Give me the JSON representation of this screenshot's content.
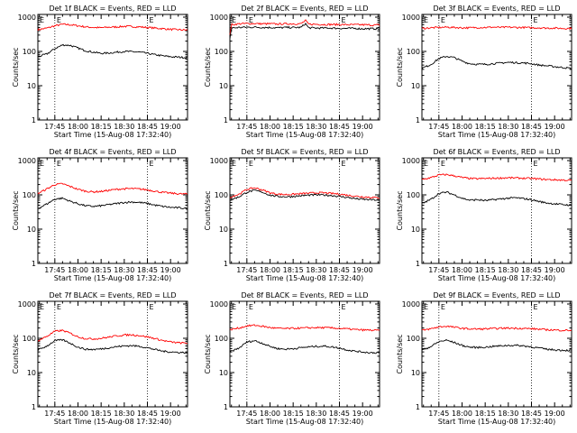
{
  "figure": {
    "colors": {
      "events": "#000000",
      "lld": "#ff0000",
      "axes": "#000000",
      "background": "#ffffff"
    },
    "y_ticks": [
      "1",
      "10",
      "100",
      "1000"
    ],
    "y_tick_values": [
      1,
      10,
      100,
      1000
    ],
    "x_ticks": [
      "17:45",
      "18:00",
      "18:15",
      "18:30",
      "18:45",
      "19:00"
    ],
    "x_tick_minutes": [
      0,
      15,
      30,
      45,
      60,
      75
    ],
    "corner_marker": "E",
    "xlabel": "Start Time (15-Aug-08 17:32:40)",
    "ylabel": "Counts/sec"
  },
  "chart_data": [
    {
      "type": "line",
      "title": "Det 1f BLACK = Events, RED = LLD",
      "xlabel": "Start Time (15-Aug-08 17:32:40)",
      "ylabel": "Counts/sec",
      "yscale": "log",
      "ylim": [
        1,
        1200
      ],
      "x_unit": "minutes after 17:45",
      "xlim": [
        -11,
        86
      ],
      "vlines": [
        0,
        60
      ],
      "grid": false,
      "series": [
        {
          "color": "red",
          "x": [
            -11,
            -5,
            0,
            5,
            10,
            15,
            20,
            25,
            30,
            35,
            40,
            45,
            50,
            55,
            60,
            65,
            70,
            75,
            80,
            86
          ],
          "values": [
            430,
            480,
            560,
            620,
            600,
            560,
            520,
            500,
            490,
            510,
            520,
            540,
            530,
            520,
            500,
            480,
            460,
            440,
            430,
            420
          ]
        },
        {
          "color": "black",
          "x": [
            -11,
            -5,
            0,
            5,
            10,
            15,
            20,
            25,
            30,
            35,
            40,
            45,
            50,
            55,
            60,
            65,
            70,
            75,
            80,
            86
          ],
          "values": [
            70,
            85,
            120,
            155,
            150,
            125,
            105,
            95,
            88,
            90,
            95,
            100,
            98,
            95,
            88,
            80,
            74,
            70,
            68,
            66
          ]
        }
      ]
    },
    {
      "type": "line",
      "title": "Det 2f BLACK = Events, RED = LLD",
      "xlabel": "Start Time (15-Aug-08 17:32:40)",
      "ylabel": "Counts/sec",
      "yscale": "log",
      "ylim": [
        1,
        1200
      ],
      "x_unit": "minutes after 17:45",
      "xlim": [
        -11,
        86
      ],
      "vlines": [
        0,
        60
      ],
      "grid": false,
      "series": [
        {
          "color": "red",
          "x": [
            -11,
            -10,
            -5,
            0,
            5,
            10,
            15,
            20,
            25,
            30,
            35,
            38,
            40,
            45,
            50,
            55,
            60,
            65,
            70,
            75,
            80,
            86
          ],
          "values": [
            320,
            600,
            640,
            650,
            650,
            640,
            640,
            630,
            640,
            640,
            640,
            800,
            620,
            620,
            610,
            610,
            610,
            600,
            600,
            600,
            590,
            590
          ]
        },
        {
          "color": "black",
          "x": [
            -11,
            -10,
            -5,
            0,
            5,
            10,
            15,
            20,
            25,
            30,
            35,
            38,
            40,
            45,
            50,
            55,
            60,
            65,
            70,
            75,
            80,
            86
          ],
          "values": [
            230,
            480,
            500,
            510,
            510,
            500,
            500,
            490,
            500,
            500,
            500,
            650,
            490,
            480,
            480,
            480,
            470,
            470,
            470,
            460,
            460,
            460
          ]
        }
      ]
    },
    {
      "type": "line",
      "title": "Det 3f BLACK = Events, RED = LLD",
      "xlabel": "Start Time (15-Aug-08 17:32:40)",
      "ylabel": "Counts/sec",
      "yscale": "log",
      "ylim": [
        1,
        1200
      ],
      "x_unit": "minutes after 17:45",
      "xlim": [
        -11,
        86
      ],
      "vlines": [
        0,
        60
      ],
      "grid": false,
      "series": [
        {
          "color": "red",
          "x": [
            -11,
            -5,
            0,
            5,
            10,
            15,
            20,
            25,
            30,
            35,
            40,
            45,
            50,
            55,
            60,
            65,
            70,
            75,
            80,
            86
          ],
          "values": [
            470,
            490,
            500,
            510,
            500,
            490,
            490,
            500,
            500,
            510,
            500,
            510,
            500,
            500,
            490,
            490,
            480,
            480,
            470,
            470
          ]
        },
        {
          "color": "black",
          "x": [
            -11,
            -5,
            0,
            5,
            10,
            15,
            20,
            25,
            30,
            35,
            40,
            45,
            50,
            55,
            60,
            65,
            70,
            75,
            80,
            86
          ],
          "values": [
            32,
            42,
            62,
            72,
            66,
            52,
            44,
            42,
            42,
            44,
            46,
            48,
            47,
            46,
            44,
            40,
            38,
            36,
            34,
            32
          ]
        }
      ]
    },
    {
      "type": "line",
      "title": "Det 4f BLACK = Events, RED = LLD",
      "xlabel": "Start Time (15-Aug-08 17:32:40)",
      "ylabel": "Counts/sec",
      "yscale": "log",
      "ylim": [
        1,
        1200
      ],
      "x_unit": "minutes after 17:45",
      "xlim": [
        -11,
        86
      ],
      "vlines": [
        0,
        60
      ],
      "grid": false,
      "series": [
        {
          "color": "red",
          "x": [
            -11,
            -5,
            0,
            5,
            10,
            15,
            20,
            25,
            30,
            35,
            40,
            45,
            50,
            55,
            60,
            65,
            70,
            75,
            80,
            86
          ],
          "values": [
            110,
            150,
            200,
            210,
            175,
            145,
            128,
            122,
            126,
            135,
            145,
            150,
            152,
            148,
            140,
            128,
            118,
            112,
            108,
            105
          ]
        },
        {
          "color": "black",
          "x": [
            -11,
            -5,
            0,
            5,
            10,
            15,
            20,
            25,
            30,
            35,
            40,
            45,
            50,
            55,
            60,
            65,
            70,
            75,
            80,
            86
          ],
          "values": [
            40,
            55,
            75,
            80,
            65,
            55,
            48,
            46,
            48,
            52,
            56,
            60,
            62,
            60,
            56,
            50,
            46,
            43,
            42,
            40
          ]
        }
      ]
    },
    {
      "type": "line",
      "title": "Det 5f BLACK = Events, RED = LLD",
      "xlabel": "Start Time (15-Aug-08 17:32:40)",
      "ylabel": "Counts/sec",
      "yscale": "log",
      "ylim": [
        1,
        1200
      ],
      "x_unit": "minutes after 17:45",
      "xlim": [
        -11,
        86
      ],
      "vlines": [
        0,
        60
      ],
      "grid": false,
      "series": [
        {
          "color": "red",
          "x": [
            -11,
            -5,
            0,
            5,
            10,
            15,
            20,
            25,
            30,
            35,
            40,
            45,
            50,
            55,
            60,
            65,
            70,
            75,
            80,
            86
          ],
          "values": [
            85,
            105,
            145,
            160,
            140,
            115,
            105,
            102,
            104,
            108,
            112,
            115,
            114,
            110,
            105,
            98,
            92,
            88,
            85,
            82
          ]
        },
        {
          "color": "black",
          "x": [
            -11,
            -5,
            0,
            5,
            10,
            15,
            20,
            25,
            30,
            35,
            40,
            45,
            50,
            55,
            60,
            65,
            70,
            75,
            80,
            86
          ],
          "values": [
            70,
            88,
            120,
            135,
            120,
            98,
            90,
            88,
            90,
            94,
            98,
            100,
            99,
            96,
            90,
            84,
            78,
            74,
            72,
            70
          ]
        }
      ]
    },
    {
      "type": "line",
      "title": "Det 6f BLACK = Events, RED = LLD",
      "xlabel": "Start Time (15-Aug-08 17:32:40)",
      "ylabel": "Counts/sec",
      "yscale": "log",
      "ylim": [
        1,
        1200
      ],
      "x_unit": "minutes after 17:45",
      "xlim": [
        -11,
        86
      ],
      "vlines": [
        0,
        60
      ],
      "grid": false,
      "series": [
        {
          "color": "red",
          "x": [
            -11,
            -5,
            0,
            5,
            10,
            15,
            20,
            25,
            30,
            35,
            40,
            45,
            50,
            55,
            60,
            65,
            70,
            75,
            80,
            86
          ],
          "values": [
            280,
            320,
            380,
            390,
            360,
            320,
            300,
            295,
            300,
            305,
            310,
            315,
            310,
            305,
            300,
            290,
            280,
            275,
            270,
            265
          ]
        },
        {
          "color": "black",
          "x": [
            -11,
            -5,
            0,
            5,
            10,
            15,
            20,
            25,
            30,
            35,
            40,
            45,
            50,
            55,
            60,
            65,
            70,
            75,
            80,
            86
          ],
          "values": [
            55,
            75,
            110,
            120,
            100,
            80,
            70,
            72,
            68,
            72,
            76,
            80,
            82,
            78,
            72,
            64,
            58,
            55,
            52,
            50
          ]
        }
      ]
    },
    {
      "type": "line",
      "title": "Det 7f BLACK = Events, RED = LLD",
      "xlabel": "Start Time (15-Aug-08 17:32:40)",
      "ylabel": "Counts/sec",
      "yscale": "log",
      "ylim": [
        1,
        1200
      ],
      "x_unit": "minutes after 17:45",
      "xlim": [
        -11,
        86
      ],
      "vlines": [
        0,
        60
      ],
      "grid": false,
      "series": [
        {
          "color": "red",
          "x": [
            -11,
            -5,
            0,
            5,
            10,
            15,
            20,
            25,
            30,
            35,
            40,
            45,
            50,
            55,
            60,
            65,
            70,
            75,
            80,
            86
          ],
          "values": [
            85,
            115,
            160,
            170,
            140,
            110,
            98,
            96,
            100,
            108,
            118,
            125,
            126,
            120,
            110,
            98,
            86,
            78,
            74,
            72
          ]
        },
        {
          "color": "black",
          "x": [
            -11,
            -5,
            0,
            5,
            10,
            15,
            20,
            25,
            30,
            35,
            40,
            45,
            50,
            55,
            60,
            65,
            70,
            75,
            80,
            86
          ],
          "values": [
            45,
            60,
            85,
            90,
            72,
            55,
            48,
            47,
            49,
            53,
            57,
            60,
            61,
            58,
            53,
            47,
            42,
            40,
            39,
            38
          ]
        }
      ]
    },
    {
      "type": "line",
      "title": "Det 8f BLACK = Events, RED = LLD",
      "xlabel": "Start Time (15-Aug-08 17:32:40)",
      "ylabel": "Counts/sec",
      "yscale": "log",
      "ylim": [
        1,
        1200
      ],
      "x_unit": "minutes after 17:45",
      "xlim": [
        -11,
        86
      ],
      "vlines": [
        0,
        60
      ],
      "grid": false,
      "series": [
        {
          "color": "red",
          "x": [
            -11,
            -5,
            0,
            5,
            10,
            15,
            20,
            25,
            30,
            35,
            40,
            45,
            50,
            55,
            60,
            65,
            70,
            75,
            80,
            86
          ],
          "values": [
            180,
            200,
            230,
            240,
            225,
            205,
            195,
            192,
            195,
            198,
            202,
            205,
            204,
            200,
            195,
            188,
            180,
            175,
            172,
            170
          ]
        },
        {
          "color": "black",
          "x": [
            -11,
            -5,
            0,
            5,
            10,
            15,
            20,
            25,
            30,
            35,
            40,
            45,
            50,
            55,
            60,
            65,
            70,
            75,
            80,
            86
          ],
          "values": [
            40,
            52,
            78,
            85,
            72,
            58,
            50,
            48,
            50,
            53,
            56,
            58,
            59,
            56,
            52,
            46,
            42,
            40,
            38,
            38
          ]
        }
      ]
    },
    {
      "type": "line",
      "title": "Det 9f BLACK = Events, RED = LLD",
      "xlabel": "Start Time (15-Aug-08 17:32:40)",
      "ylabel": "Counts/sec",
      "yscale": "log",
      "ylim": [
        1,
        1200
      ],
      "x_unit": "minutes after 17:45",
      "xlim": [
        -11,
        86
      ],
      "vlines": [
        0,
        60
      ],
      "grid": false,
      "series": [
        {
          "color": "red",
          "x": [
            -11,
            -5,
            0,
            5,
            10,
            15,
            20,
            25,
            30,
            35,
            40,
            45,
            50,
            55,
            60,
            65,
            70,
            75,
            80,
            86
          ],
          "values": [
            170,
            190,
            215,
            225,
            210,
            195,
            188,
            186,
            188,
            192,
            196,
            198,
            197,
            194,
            190,
            184,
            178,
            174,
            172,
            170
          ]
        },
        {
          "color": "black",
          "x": [
            -11,
            -5,
            0,
            5,
            10,
            15,
            20,
            25,
            30,
            35,
            40,
            45,
            50,
            55,
            60,
            65,
            70,
            75,
            80,
            86
          ],
          "values": [
            45,
            58,
            80,
            88,
            75,
            62,
            55,
            54,
            55,
            58,
            60,
            62,
            62,
            60,
            56,
            52,
            48,
            46,
            45,
            44
          ]
        }
      ]
    }
  ]
}
